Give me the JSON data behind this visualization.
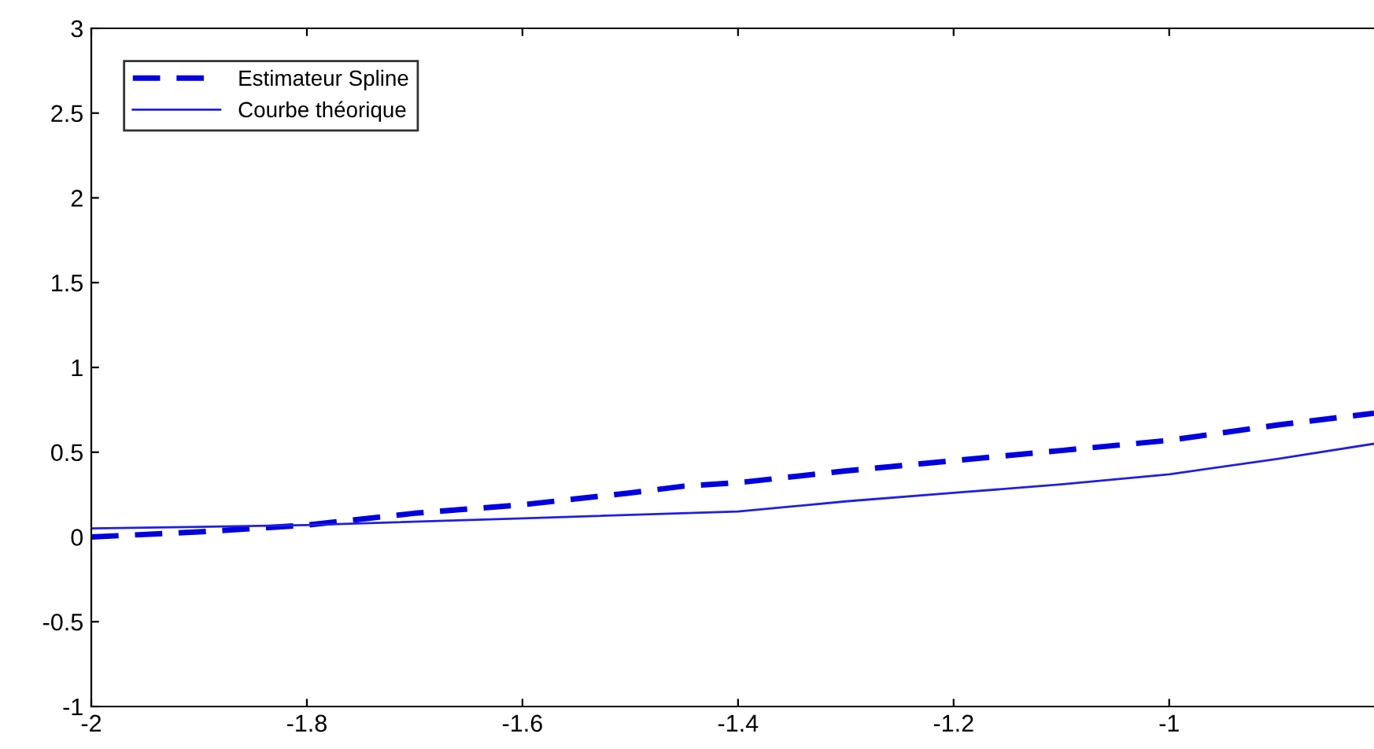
{
  "chart_data": {
    "type": "line",
    "xlim": [
      -2,
      -0.81
    ],
    "ylim": [
      -1,
      3
    ],
    "xticks": [
      -2,
      -1.8,
      -1.6,
      -1.4,
      -1.2,
      -1
    ],
    "yticks": [
      -1,
      -0.5,
      0,
      0.5,
      1,
      1.5,
      2,
      2.5,
      3
    ],
    "grid": false,
    "legend": "top left",
    "series": [
      {
        "name": "Estimateur Spline",
        "color": "#0000e0",
        "line_style": "dashed",
        "x": [
          -2,
          -1.9,
          -1.8,
          -1.7,
          -1.6,
          -1.5,
          -1.45,
          -1.4,
          -1.3,
          -1.2,
          -1.1,
          -1,
          -0.9,
          -0.81
        ],
        "values": [
          0.0,
          0.03,
          0.07,
          0.14,
          0.19,
          0.26,
          0.3,
          0.32,
          0.39,
          0.45,
          0.51,
          0.57,
          0.66,
          0.73
        ]
      },
      {
        "name": "Courbe théorique",
        "color": "#2020e0",
        "line_style": "solid",
        "x": [
          -2,
          -1.8,
          -1.6,
          -1.4,
          -1.3,
          -1.2,
          -1.1,
          -1,
          -0.9,
          -0.81
        ],
        "values": [
          0.05,
          0.07,
          0.11,
          0.15,
          0.21,
          0.26,
          0.31,
          0.37,
          0.46,
          0.55
        ]
      }
    ]
  }
}
